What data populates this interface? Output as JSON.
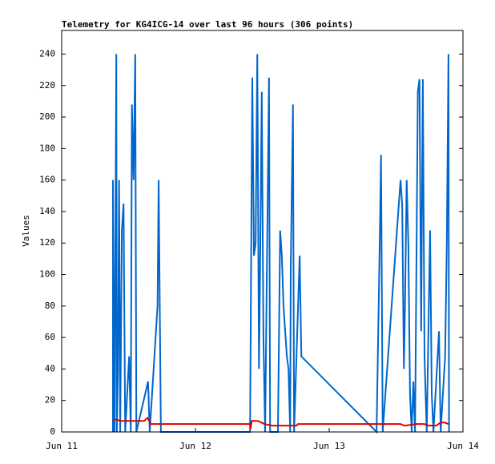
{
  "chart_data": {
    "type": "line",
    "title": "Telemetry for KG4ICG-14 over last 96 hours (306 points)",
    "ylabel": "Values",
    "xlim": [
      0,
      72
    ],
    "xticks": [
      {
        "value": 0,
        "label": "Jun 11"
      },
      {
        "value": 24,
        "label": "Jun 12"
      },
      {
        "value": 48,
        "label": "Jun 13"
      },
      {
        "value": 72,
        "label": "Jun 14"
      }
    ],
    "ylim": [
      0,
      255
    ],
    "yticks": [
      0,
      20,
      40,
      60,
      80,
      100,
      120,
      140,
      160,
      180,
      200,
      220,
      240
    ],
    "series": [
      {
        "color": "#0066cc",
        "x": [
          9.2,
          9.2,
          9.5,
          9.8,
          9.9,
          10.1,
          10.3,
          10.5,
          10.8,
          11.1,
          11.4,
          12.1,
          12.4,
          12.6,
          12.9,
          13.2,
          13.4,
          15.5,
          15.8,
          17.2,
          17.4,
          17.7,
          17.8,
          33.8,
          34.2,
          34.5,
          34.8,
          35.1,
          35.4,
          35.6,
          35.9,
          36.2,
          36.5,
          37.2,
          37.4,
          38.8,
          39.2,
          39.5,
          39.8,
          40.1,
          40.4,
          40.7,
          41.0,
          41.1,
          41.5,
          41.7,
          42.7,
          43.0,
          56.5,
          57.1,
          57.3,
          57.6,
          60.8,
          61.1,
          61.4,
          61.6,
          61.9,
          62.2,
          62.5,
          62.8,
          63.1,
          63.4,
          63.7,
          63.9,
          64.2,
          64.5,
          64.8,
          65.1,
          65.5,
          66.1,
          66.4,
          66.7,
          67.7,
          68.0,
          68.8,
          69.1,
          69.4,
          69.5
        ],
        "values": [
          0,
          160,
          0,
          240,
          0,
          40,
          160,
          0,
          128,
          145,
          0,
          48,
          0,
          208,
          160,
          240,
          0,
          32,
          0,
          80,
          160,
          40,
          0,
          0,
          225,
          112,
          120,
          240,
          40,
          104,
          216,
          60,
          0,
          225,
          0,
          0,
          128,
          112,
          80,
          64,
          48,
          40,
          0,
          104,
          208,
          0,
          112,
          48,
          0,
          128,
          176,
          0,
          160,
          144,
          40,
          80,
          160,
          120,
          24,
          0,
          32,
          0,
          128,
          216,
          224,
          64,
          224,
          48,
          0,
          128,
          24,
          0,
          64,
          0,
          48,
          120,
          240,
          0
        ]
      },
      {
        "color": "#e00000",
        "x": [
          9.2,
          9.8,
          10.5,
          14.8,
          15.4,
          16.0,
          33.8,
          33.9,
          34.1,
          35.2,
          36.4,
          37.8,
          42.1,
          42.4,
          60.8,
          61.5,
          63.7,
          65.1,
          65.8,
          67.2,
          68.0,
          68.7,
          69.4
        ],
        "values": [
          7,
          8,
          7,
          7,
          9,
          5,
          5,
          2,
          7,
          7,
          5,
          4,
          4,
          5,
          5,
          4,
          5,
          5,
          4,
          4,
          6,
          6,
          5
        ]
      }
    ]
  }
}
